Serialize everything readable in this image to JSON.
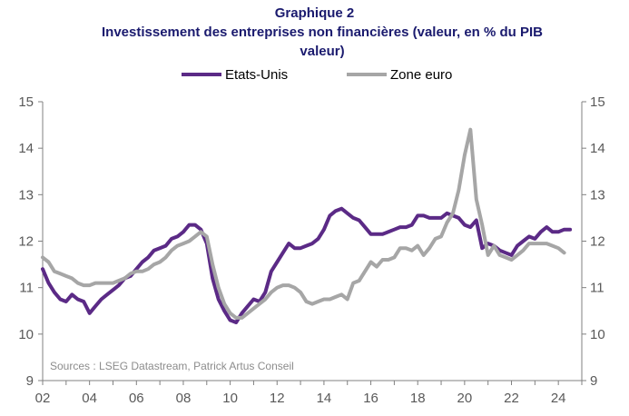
{
  "chart_data": {
    "type": "line",
    "title": "Graphique 2",
    "subtitle": "Investissement des entreprises non financières (valeur, en % du PIB valeur)",
    "source": "Sources : LSEG Datastream, Patrick Artus Conseil",
    "xlabel": "",
    "ylabel": "",
    "xlim": [
      2002,
      2025
    ],
    "ylim": [
      9,
      15
    ],
    "x_ticks": [
      "02",
      "04",
      "06",
      "08",
      "10",
      "12",
      "14",
      "16",
      "18",
      "20",
      "22",
      "24"
    ],
    "y_ticks": [
      "9",
      "10",
      "11",
      "12",
      "13",
      "14",
      "15"
    ],
    "secondary_y_ticks": [
      "9",
      "10",
      "11",
      "12",
      "13",
      "14",
      "15"
    ],
    "grid": false,
    "legend_position": "top",
    "series": [
      {
        "name": "Etats-Unis",
        "color": "#5b2a86",
        "points": [
          [
            2002.0,
            11.4
          ],
          [
            2002.25,
            11.1
          ],
          [
            2002.5,
            10.9
          ],
          [
            2002.75,
            10.75
          ],
          [
            2003.0,
            10.7
          ],
          [
            2003.25,
            10.85
          ],
          [
            2003.5,
            10.75
          ],
          [
            2003.75,
            10.7
          ],
          [
            2004.0,
            10.45
          ],
          [
            2004.25,
            10.6
          ],
          [
            2004.5,
            10.75
          ],
          [
            2004.75,
            10.85
          ],
          [
            2005.0,
            10.95
          ],
          [
            2005.25,
            11.05
          ],
          [
            2005.5,
            11.2
          ],
          [
            2005.75,
            11.25
          ],
          [
            2006.0,
            11.4
          ],
          [
            2006.25,
            11.55
          ],
          [
            2006.5,
            11.65
          ],
          [
            2006.75,
            11.8
          ],
          [
            2007.0,
            11.85
          ],
          [
            2007.25,
            11.9
          ],
          [
            2007.5,
            12.05
          ],
          [
            2007.75,
            12.1
          ],
          [
            2008.0,
            12.2
          ],
          [
            2008.25,
            12.35
          ],
          [
            2008.5,
            12.35
          ],
          [
            2008.75,
            12.25
          ],
          [
            2009.0,
            11.95
          ],
          [
            2009.25,
            11.2
          ],
          [
            2009.5,
            10.75
          ],
          [
            2009.75,
            10.5
          ],
          [
            2010.0,
            10.3
          ],
          [
            2010.25,
            10.25
          ],
          [
            2010.5,
            10.45
          ],
          [
            2010.75,
            10.6
          ],
          [
            2011.0,
            10.75
          ],
          [
            2011.25,
            10.7
          ],
          [
            2011.5,
            10.9
          ],
          [
            2011.75,
            11.35
          ],
          [
            2012.0,
            11.55
          ],
          [
            2012.25,
            11.75
          ],
          [
            2012.5,
            11.95
          ],
          [
            2012.75,
            11.85
          ],
          [
            2013.0,
            11.85
          ],
          [
            2013.25,
            11.9
          ],
          [
            2013.5,
            11.95
          ],
          [
            2013.75,
            12.05
          ],
          [
            2014.0,
            12.25
          ],
          [
            2014.25,
            12.55
          ],
          [
            2014.5,
            12.65
          ],
          [
            2014.75,
            12.7
          ],
          [
            2015.0,
            12.6
          ],
          [
            2015.25,
            12.5
          ],
          [
            2015.5,
            12.45
          ],
          [
            2015.75,
            12.3
          ],
          [
            2016.0,
            12.15
          ],
          [
            2016.25,
            12.15
          ],
          [
            2016.5,
            12.15
          ],
          [
            2016.75,
            12.2
          ],
          [
            2017.0,
            12.25
          ],
          [
            2017.25,
            12.3
          ],
          [
            2017.5,
            12.3
          ],
          [
            2017.75,
            12.35
          ],
          [
            2018.0,
            12.55
          ],
          [
            2018.25,
            12.55
          ],
          [
            2018.5,
            12.5
          ],
          [
            2018.75,
            12.5
          ],
          [
            2019.0,
            12.5
          ],
          [
            2019.25,
            12.6
          ],
          [
            2019.5,
            12.55
          ],
          [
            2019.75,
            12.5
          ],
          [
            2020.0,
            12.35
          ],
          [
            2020.25,
            12.3
          ],
          [
            2020.5,
            12.45
          ],
          [
            2020.75,
            11.85
          ],
          [
            2021.0,
            11.95
          ],
          [
            2021.25,
            11.9
          ],
          [
            2021.5,
            11.8
          ],
          [
            2021.75,
            11.75
          ],
          [
            2022.0,
            11.7
          ],
          [
            2022.25,
            11.9
          ],
          [
            2022.5,
            12.0
          ],
          [
            2022.75,
            12.1
          ],
          [
            2023.0,
            12.05
          ],
          [
            2023.25,
            12.2
          ],
          [
            2023.5,
            12.3
          ],
          [
            2023.75,
            12.2
          ],
          [
            2024.0,
            12.2
          ],
          [
            2024.25,
            12.25
          ],
          [
            2024.5,
            12.25
          ]
        ]
      },
      {
        "name": "Zone euro",
        "color": "#a6a6a6",
        "points": [
          [
            2002.0,
            11.65
          ],
          [
            2002.25,
            11.55
          ],
          [
            2002.5,
            11.35
          ],
          [
            2002.75,
            11.3
          ],
          [
            2003.0,
            11.25
          ],
          [
            2003.25,
            11.2
          ],
          [
            2003.5,
            11.1
          ],
          [
            2003.75,
            11.05
          ],
          [
            2004.0,
            11.05
          ],
          [
            2004.25,
            11.1
          ],
          [
            2004.5,
            11.1
          ],
          [
            2004.75,
            11.1
          ],
          [
            2005.0,
            11.1
          ],
          [
            2005.25,
            11.15
          ],
          [
            2005.5,
            11.2
          ],
          [
            2005.75,
            11.3
          ],
          [
            2006.0,
            11.35
          ],
          [
            2006.25,
            11.35
          ],
          [
            2006.5,
            11.4
          ],
          [
            2006.75,
            11.5
          ],
          [
            2007.0,
            11.55
          ],
          [
            2007.25,
            11.65
          ],
          [
            2007.5,
            11.8
          ],
          [
            2007.75,
            11.9
          ],
          [
            2008.0,
            11.95
          ],
          [
            2008.25,
            12.0
          ],
          [
            2008.5,
            12.1
          ],
          [
            2008.75,
            12.2
          ],
          [
            2009.0,
            12.1
          ],
          [
            2009.25,
            11.5
          ],
          [
            2009.5,
            11.0
          ],
          [
            2009.75,
            10.65
          ],
          [
            2010.0,
            10.45
          ],
          [
            2010.25,
            10.35
          ],
          [
            2010.5,
            10.35
          ],
          [
            2010.75,
            10.45
          ],
          [
            2011.0,
            10.55
          ],
          [
            2011.25,
            10.65
          ],
          [
            2011.5,
            10.75
          ],
          [
            2011.75,
            10.9
          ],
          [
            2012.0,
            11.0
          ],
          [
            2012.25,
            11.05
          ],
          [
            2012.5,
            11.05
          ],
          [
            2012.75,
            11.0
          ],
          [
            2013.0,
            10.9
          ],
          [
            2013.25,
            10.7
          ],
          [
            2013.5,
            10.65
          ],
          [
            2013.75,
            10.7
          ],
          [
            2014.0,
            10.75
          ],
          [
            2014.25,
            10.75
          ],
          [
            2014.5,
            10.8
          ],
          [
            2014.75,
            10.85
          ],
          [
            2015.0,
            10.75
          ],
          [
            2015.25,
            11.1
          ],
          [
            2015.5,
            11.15
          ],
          [
            2015.75,
            11.35
          ],
          [
            2016.0,
            11.55
          ],
          [
            2016.25,
            11.45
          ],
          [
            2016.5,
            11.6
          ],
          [
            2016.75,
            11.6
          ],
          [
            2017.0,
            11.65
          ],
          [
            2017.25,
            11.85
          ],
          [
            2017.5,
            11.85
          ],
          [
            2017.75,
            11.8
          ],
          [
            2018.0,
            11.9
          ],
          [
            2018.25,
            11.7
          ],
          [
            2018.5,
            11.85
          ],
          [
            2018.75,
            12.05
          ],
          [
            2019.0,
            12.1
          ],
          [
            2019.25,
            12.4
          ],
          [
            2019.5,
            12.6
          ],
          [
            2019.75,
            13.1
          ],
          [
            2020.0,
            13.85
          ],
          [
            2020.25,
            14.4
          ],
          [
            2020.5,
            12.9
          ],
          [
            2020.75,
            12.35
          ],
          [
            2021.0,
            11.7
          ],
          [
            2021.25,
            11.9
          ],
          [
            2021.5,
            11.7
          ],
          [
            2021.75,
            11.65
          ],
          [
            2022.0,
            11.6
          ],
          [
            2022.25,
            11.7
          ],
          [
            2022.5,
            11.8
          ],
          [
            2022.75,
            11.95
          ],
          [
            2023.0,
            11.95
          ],
          [
            2023.25,
            11.95
          ],
          [
            2023.5,
            11.95
          ],
          [
            2023.75,
            11.9
          ],
          [
            2024.0,
            11.85
          ],
          [
            2024.25,
            11.75
          ]
        ]
      }
    ]
  }
}
